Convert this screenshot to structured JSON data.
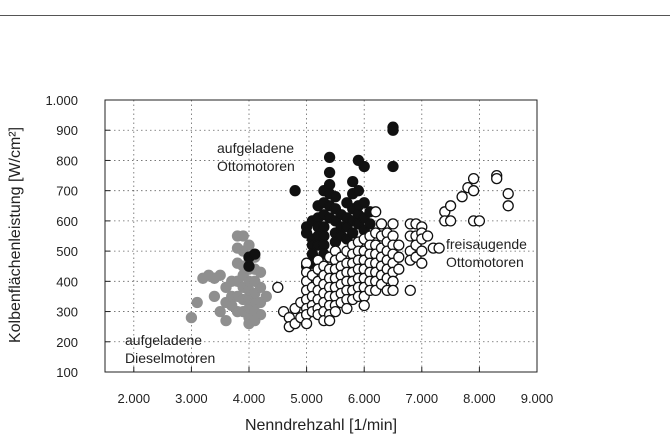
{
  "chart_data": {
    "type": "scatter",
    "xlabel": "Nenndrehzahl [1/min]",
    "ylabel": "Kolbenflächenleistung [W/cm²]",
    "xlim": [
      1500,
      9000
    ],
    "ylim": [
      100,
      1000
    ],
    "x_ticks": [
      "2.000",
      "3.000",
      "4.000",
      "5.000",
      "6.000",
      "7.000",
      "8.000",
      "9.000"
    ],
    "y_ticks": [
      "100",
      "200",
      "300",
      "400",
      "500",
      "600",
      "700",
      "800",
      "900",
      "1.000"
    ],
    "grid": "dotted",
    "annotations": [
      {
        "id": "turbo-petrol",
        "lines": [
          "aufgeladene",
          "Ottomotoren"
        ]
      },
      {
        "id": "na-petrol",
        "lines": [
          "freisaugende",
          "Ottomotoren"
        ]
      },
      {
        "id": "turbo-diesel",
        "lines": [
          "aufgeladene",
          "Dieselmotoren"
        ]
      }
    ],
    "series": [
      {
        "color": "#8f8f8f",
        "fill": "#8f8f8f",
        "stroke": "#8f8f8f",
        "points": [
          [
            3000,
            280
          ],
          [
            3100,
            330
          ],
          [
            3200,
            410
          ],
          [
            3300,
            420
          ],
          [
            3400,
            410
          ],
          [
            3400,
            350
          ],
          [
            3500,
            420
          ],
          [
            3500,
            300
          ],
          [
            3600,
            380
          ],
          [
            3600,
            330
          ],
          [
            3600,
            270
          ],
          [
            3700,
            400
          ],
          [
            3700,
            350
          ],
          [
            3700,
            320
          ],
          [
            3800,
            550
          ],
          [
            3800,
            510
          ],
          [
            3800,
            460
          ],
          [
            3800,
            400
          ],
          [
            3800,
            350
          ],
          [
            3800,
            300
          ],
          [
            3900,
            550
          ],
          [
            3900,
            500
          ],
          [
            3900,
            450
          ],
          [
            3900,
            420
          ],
          [
            3900,
            380
          ],
          [
            3900,
            340
          ],
          [
            3900,
            300
          ],
          [
            4000,
            520
          ],
          [
            4000,
            480
          ],
          [
            4000,
            440
          ],
          [
            4000,
            400
          ],
          [
            4000,
            370
          ],
          [
            4000,
            340
          ],
          [
            4000,
            310
          ],
          [
            4000,
            280
          ],
          [
            4000,
            260
          ],
          [
            4100,
            480
          ],
          [
            4100,
            440
          ],
          [
            4100,
            400
          ],
          [
            4100,
            360
          ],
          [
            4100,
            330
          ],
          [
            4100,
            300
          ],
          [
            4100,
            270
          ],
          [
            4200,
            430
          ],
          [
            4200,
            380
          ],
          [
            4200,
            330
          ],
          [
            4200,
            290
          ],
          [
            4300,
            350
          ]
        ]
      },
      {
        "color": "#111111",
        "fill": "#111111",
        "stroke": "#111111",
        "points": [
          [
            4000,
            480
          ],
          [
            4000,
            450
          ],
          [
            4100,
            490
          ],
          [
            4800,
            700
          ],
          [
            5000,
            580
          ],
          [
            5000,
            560
          ],
          [
            5000,
            450
          ],
          [
            5100,
            600
          ],
          [
            5100,
            540
          ],
          [
            5100,
            520
          ],
          [
            5100,
            490
          ],
          [
            5100,
            460
          ],
          [
            5200,
            650
          ],
          [
            5200,
            610
          ],
          [
            5200,
            580
          ],
          [
            5200,
            550
          ],
          [
            5200,
            520
          ],
          [
            5300,
            700
          ],
          [
            5300,
            660
          ],
          [
            5300,
            620
          ],
          [
            5300,
            580
          ],
          [
            5300,
            550
          ],
          [
            5300,
            520
          ],
          [
            5300,
            490
          ],
          [
            5400,
            810
          ],
          [
            5400,
            760
          ],
          [
            5400,
            720
          ],
          [
            5400,
            690
          ],
          [
            5400,
            650
          ],
          [
            5400,
            610
          ],
          [
            5500,
            680
          ],
          [
            5500,
            640
          ],
          [
            5500,
            600
          ],
          [
            5500,
            560
          ],
          [
            5500,
            530
          ],
          [
            5600,
            620
          ],
          [
            5600,
            580
          ],
          [
            5600,
            550
          ],
          [
            5700,
            660
          ],
          [
            5700,
            610
          ],
          [
            5700,
            580
          ],
          [
            5700,
            540
          ],
          [
            5800,
            730
          ],
          [
            5800,
            690
          ],
          [
            5800,
            640
          ],
          [
            5800,
            600
          ],
          [
            5800,
            560
          ],
          [
            5900,
            800
          ],
          [
            5900,
            700
          ],
          [
            5900,
            650
          ],
          [
            5900,
            620
          ],
          [
            5900,
            590
          ],
          [
            6000,
            780
          ],
          [
            6000,
            660
          ],
          [
            6000,
            610
          ],
          [
            6000,
            570
          ],
          [
            6100,
            630
          ],
          [
            6100,
            590
          ],
          [
            6500,
            910
          ],
          [
            6500,
            900
          ],
          [
            6500,
            780
          ]
        ]
      },
      {
        "color": "#000000",
        "fill": "#ffffff",
        "stroke": "#111111",
        "points": [
          [
            4500,
            380
          ],
          [
            4600,
            300
          ],
          [
            4700,
            280
          ],
          [
            4700,
            250
          ],
          [
            4800,
            310
          ],
          [
            4800,
            260
          ],
          [
            4900,
            330
          ],
          [
            4900,
            280
          ],
          [
            5000,
            460
          ],
          [
            5000,
            430
          ],
          [
            5000,
            400
          ],
          [
            5000,
            370
          ],
          [
            5000,
            340
          ],
          [
            5000,
            310
          ],
          [
            5000,
            290
          ],
          [
            5000,
            260
          ],
          [
            5100,
            420
          ],
          [
            5100,
            380
          ],
          [
            5100,
            350
          ],
          [
            5100,
            320
          ],
          [
            5100,
            300
          ],
          [
            5200,
            470
          ],
          [
            5200,
            440
          ],
          [
            5200,
            400
          ],
          [
            5200,
            370
          ],
          [
            5200,
            340
          ],
          [
            5200,
            310
          ],
          [
            5200,
            290
          ],
          [
            5300,
            450
          ],
          [
            5300,
            420
          ],
          [
            5300,
            390
          ],
          [
            5300,
            360
          ],
          [
            5300,
            330
          ],
          [
            5300,
            300
          ],
          [
            5300,
            270
          ],
          [
            5400,
            480
          ],
          [
            5400,
            440
          ],
          [
            5400,
            410
          ],
          [
            5400,
            380
          ],
          [
            5400,
            350
          ],
          [
            5400,
            320
          ],
          [
            5400,
            290
          ],
          [
            5400,
            270
          ],
          [
            5500,
            500
          ],
          [
            5500,
            470
          ],
          [
            5500,
            440
          ],
          [
            5500,
            410
          ],
          [
            5500,
            380
          ],
          [
            5500,
            350
          ],
          [
            5500,
            320
          ],
          [
            5500,
            300
          ],
          [
            5600,
            480
          ],
          [
            5600,
            450
          ],
          [
            5600,
            420
          ],
          [
            5600,
            390
          ],
          [
            5600,
            360
          ],
          [
            5600,
            330
          ],
          [
            5700,
            500
          ],
          [
            5700,
            460
          ],
          [
            5700,
            430
          ],
          [
            5700,
            400
          ],
          [
            5700,
            370
          ],
          [
            5700,
            340
          ],
          [
            5700,
            310
          ],
          [
            5800,
            520
          ],
          [
            5800,
            490
          ],
          [
            5800,
            460
          ],
          [
            5800,
            430
          ],
          [
            5800,
            400
          ],
          [
            5800,
            370
          ],
          [
            5800,
            340
          ],
          [
            5900,
            530
          ],
          [
            5900,
            500
          ],
          [
            5900,
            470
          ],
          [
            5900,
            440
          ],
          [
            5900,
            410
          ],
          [
            5900,
            380
          ],
          [
            5900,
            350
          ],
          [
            6000,
            540
          ],
          [
            6000,
            500
          ],
          [
            6000,
            470
          ],
          [
            6000,
            440
          ],
          [
            6000,
            410
          ],
          [
            6000,
            380
          ],
          [
            6000,
            350
          ],
          [
            6000,
            320
          ],
          [
            6100,
            550
          ],
          [
            6100,
            520
          ],
          [
            6100,
            490
          ],
          [
            6100,
            460
          ],
          [
            6100,
            430
          ],
          [
            6100,
            400
          ],
          [
            6100,
            370
          ],
          [
            6200,
            630
          ],
          [
            6200,
            560
          ],
          [
            6200,
            520
          ],
          [
            6200,
            490
          ],
          [
            6200,
            460
          ],
          [
            6200,
            430
          ],
          [
            6200,
            400
          ],
          [
            6200,
            370
          ],
          [
            6300,
            590
          ],
          [
            6300,
            550
          ],
          [
            6300,
            510
          ],
          [
            6300,
            480
          ],
          [
            6300,
            450
          ],
          [
            6300,
            420
          ],
          [
            6300,
            390
          ],
          [
            6400,
            560
          ],
          [
            6400,
            530
          ],
          [
            6400,
            500
          ],
          [
            6400,
            470
          ],
          [
            6400,
            440
          ],
          [
            6400,
            410
          ],
          [
            6400,
            370
          ],
          [
            6500,
            590
          ],
          [
            6500,
            550
          ],
          [
            6500,
            520
          ],
          [
            6500,
            490
          ],
          [
            6500,
            460
          ],
          [
            6500,
            430
          ],
          [
            6500,
            400
          ],
          [
            6500,
            370
          ],
          [
            6600,
            520
          ],
          [
            6600,
            480
          ],
          [
            6600,
            440
          ],
          [
            6800,
            590
          ],
          [
            6800,
            550
          ],
          [
            6800,
            500
          ],
          [
            6800,
            470
          ],
          [
            6800,
            370
          ],
          [
            6900,
            590
          ],
          [
            6900,
            550
          ],
          [
            6900,
            520
          ],
          [
            6900,
            480
          ],
          [
            7000,
            580
          ],
          [
            7000,
            560
          ],
          [
            7000,
            540
          ],
          [
            7000,
            500
          ],
          [
            7000,
            460
          ],
          [
            7100,
            550
          ],
          [
            7200,
            510
          ],
          [
            7300,
            510
          ],
          [
            7400,
            630
          ],
          [
            7400,
            600
          ],
          [
            7500,
            600
          ],
          [
            7500,
            650
          ],
          [
            7700,
            680
          ],
          [
            7800,
            710
          ],
          [
            7900,
            740
          ],
          [
            7900,
            700
          ],
          [
            7900,
            600
          ],
          [
            8000,
            600
          ],
          [
            8300,
            750
          ],
          [
            8300,
            740
          ],
          [
            8500,
            690
          ],
          [
            8500,
            650
          ]
        ]
      }
    ]
  }
}
